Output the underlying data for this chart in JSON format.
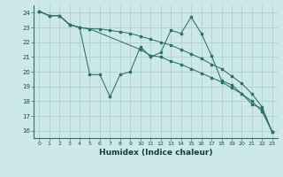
{
  "xlabel": "Humidex (Indice chaleur)",
  "bg_color": "#cce8e8",
  "grid_color": "#aacccc",
  "line_color": "#2d7068",
  "xlim": [
    -0.5,
    23.5
  ],
  "ylim": [
    15.5,
    24.5
  ],
  "xticks": [
    0,
    1,
    2,
    3,
    4,
    5,
    6,
    7,
    8,
    9,
    10,
    11,
    12,
    13,
    14,
    15,
    16,
    17,
    18,
    19,
    20,
    21,
    22,
    23
  ],
  "yticks": [
    16,
    17,
    18,
    19,
    20,
    21,
    22,
    23,
    24
  ],
  "line1_x": [
    0,
    1,
    2,
    3,
    4,
    5,
    10,
    11,
    12,
    13,
    14,
    15,
    16,
    17,
    18,
    19,
    20,
    21,
    22,
    23
  ],
  "line1_y": [
    24.1,
    23.8,
    23.8,
    23.2,
    23.0,
    22.9,
    21.5,
    21.1,
    21.0,
    20.7,
    20.5,
    20.2,
    19.9,
    19.6,
    19.3,
    18.9,
    18.5,
    18.0,
    17.3,
    15.9
  ],
  "line2_x": [
    0,
    1,
    2,
    3,
    4,
    5,
    6,
    7,
    8,
    9,
    10,
    11,
    12,
    13,
    14,
    15,
    16,
    17,
    18,
    19,
    20,
    21,
    22,
    23
  ],
  "line2_y": [
    24.1,
    23.8,
    23.8,
    23.2,
    23.0,
    19.8,
    19.8,
    18.3,
    19.8,
    20.0,
    21.7,
    21.0,
    21.3,
    22.8,
    22.6,
    23.7,
    22.6,
    21.1,
    19.4,
    19.1,
    18.5,
    17.8,
    17.5,
    15.9
  ],
  "line3_x": [
    0,
    1,
    2,
    3,
    4,
    5,
    6,
    7,
    8,
    9,
    10,
    11,
    12,
    13,
    14,
    15,
    16,
    17,
    18,
    19,
    20,
    21,
    22,
    23
  ],
  "line3_y": [
    24.1,
    23.8,
    23.8,
    23.2,
    23.0,
    22.9,
    22.9,
    22.8,
    22.7,
    22.6,
    22.4,
    22.2,
    22.0,
    21.8,
    21.5,
    21.2,
    20.9,
    20.5,
    20.2,
    19.7,
    19.2,
    18.5,
    17.6,
    15.9
  ]
}
